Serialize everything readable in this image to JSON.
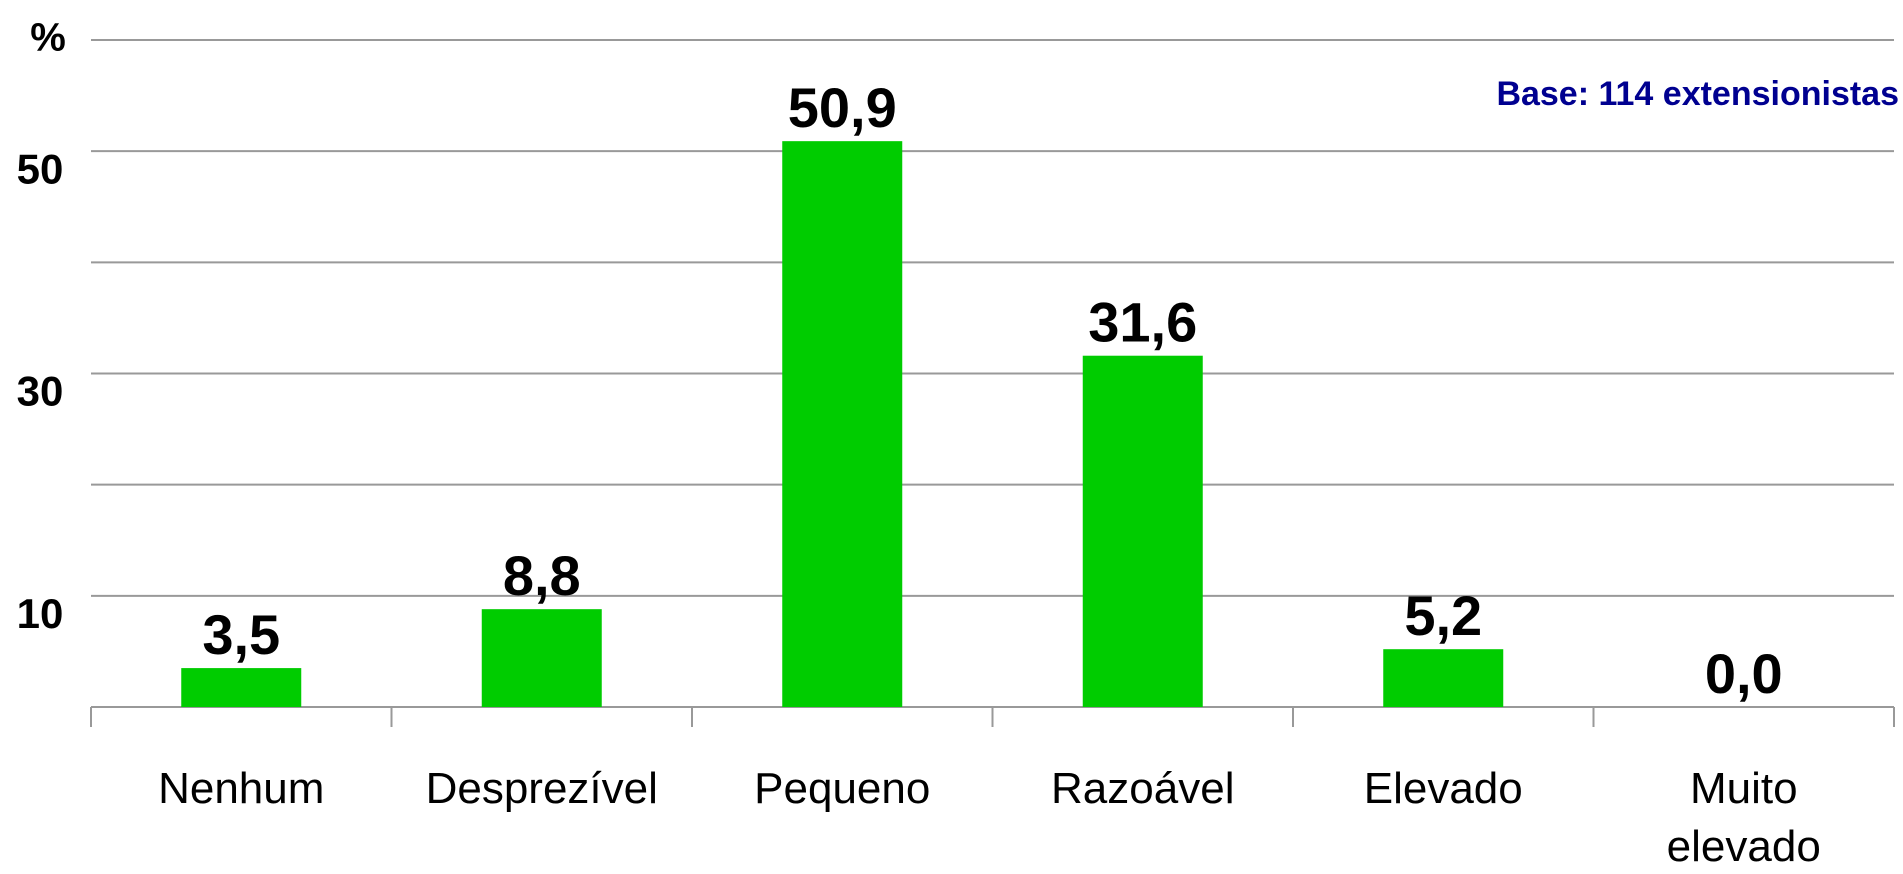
{
  "chart_data": {
    "type": "bar",
    "y_unit_label": "%",
    "annotation": "Base: 114 extensionistas",
    "categories": [
      "Nenhum",
      "Desprezível",
      "Pequeno",
      "Razoável",
      "Elevado",
      "Muito elevado"
    ],
    "values": [
      3.5,
      8.8,
      50.9,
      31.6,
      5.2,
      0.0
    ],
    "value_labels": [
      "3,5",
      "8,8",
      "50,9",
      "31,6",
      "5,2",
      "0,0"
    ],
    "color": "#00cc00",
    "ylim": [
      0,
      60
    ],
    "yticks": [
      10,
      30,
      50
    ],
    "minor_yticks": [
      20,
      40,
      60
    ],
    "grid": true
  }
}
